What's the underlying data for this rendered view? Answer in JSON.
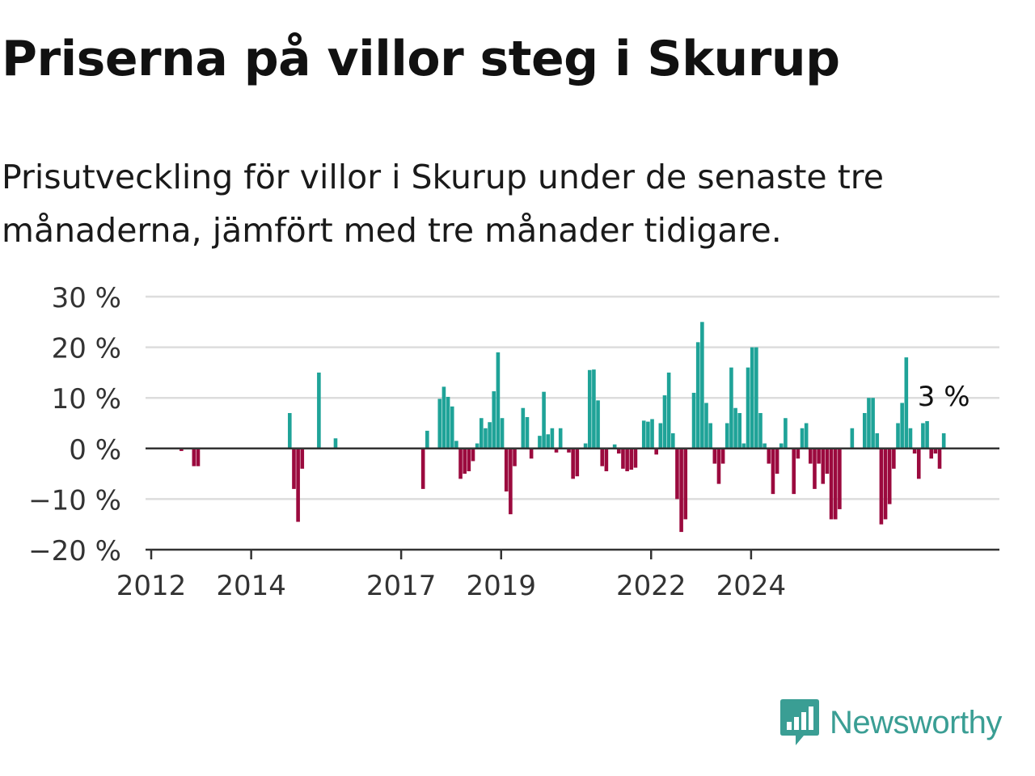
{
  "title": "Priserna på villor steg i Skurup",
  "subtitle": "Prisutveckling för villor i Skurup under de senaste tre månaderna, jämfört med tre månader tidigare.",
  "colors": {
    "positive": "#1fa398",
    "negative": "#9b0a3e",
    "grid": "#dddddd",
    "axis": "#333333"
  },
  "logo": {
    "text": "Newsworthy",
    "icon": "newsworthy-chart-icon",
    "color": "#3a9e94"
  },
  "chart_data": {
    "type": "bar",
    "grid": true,
    "ylim": [
      -20,
      30
    ],
    "y_ticks": [
      30,
      20,
      10,
      0,
      -10,
      -20
    ],
    "y_tick_labels": [
      "30 %",
      "20 %",
      "10 %",
      "0 %",
      "−10 %",
      "−20 %"
    ],
    "x_ticks": [
      "2012",
      "2014",
      "2017",
      "2019",
      "2022",
      "2024"
    ],
    "annotation": {
      "text": "3 %",
      "target": "last"
    },
    "series": [
      {
        "values": [
          0,
          0,
          0,
          0,
          0,
          0,
          0,
          -0.5,
          0,
          0,
          -3.5,
          -3.5,
          0,
          0,
          0,
          0,
          0,
          0,
          0,
          0,
          0,
          0,
          0,
          0,
          0,
          0,
          0,
          0,
          0,
          0,
          0,
          0,
          0,
          7,
          -8,
          -14.5,
          -4,
          0,
          0,
          0,
          15,
          0,
          0,
          0,
          2,
          0,
          0,
          0,
          0,
          0,
          0,
          0,
          0,
          0,
          0,
          0,
          0,
          0,
          0,
          0,
          0,
          0,
          0,
          0,
          0,
          -8,
          3.5,
          0,
          0,
          9.8,
          12.2,
          10.2,
          8.3,
          1.5,
          -6,
          -5,
          -4.5,
          -2.5,
          1,
          6,
          4,
          5.2,
          11.3,
          19,
          6,
          -8.5,
          -13,
          -3.5,
          0,
          8,
          6.2,
          -2,
          0,
          2.5,
          11.2,
          2.8,
          4,
          -0.8,
          4,
          0,
          -0.8,
          -6,
          -5.5,
          0,
          1,
          15.5,
          15.6,
          9.5,
          -3.5,
          -4.5,
          0,
          0.8,
          -1,
          -4,
          -4.5,
          -4.2,
          -3.8,
          0,
          5.5,
          5.3,
          5.8,
          -1.2,
          5,
          10.5,
          15,
          3,
          -10,
          -16.5,
          -14,
          0,
          11,
          21,
          25,
          9,
          5,
          -3,
          -7,
          -3,
          5,
          16,
          8,
          7,
          1,
          16,
          20,
          20,
          7,
          1,
          -3,
          -9,
          -5,
          1,
          6,
          0,
          -9,
          -2,
          4,
          5,
          -3,
          -8,
          -3,
          -7,
          -5,
          -14,
          -14,
          -12,
          0,
          0,
          4,
          0,
          0,
          7,
          10,
          10,
          3,
          -15,
          -14,
          -11,
          -4,
          5,
          9,
          18,
          4,
          -1,
          -6,
          5,
          5.4,
          -2,
          -1,
          -4,
          3
        ]
      }
    ]
  }
}
